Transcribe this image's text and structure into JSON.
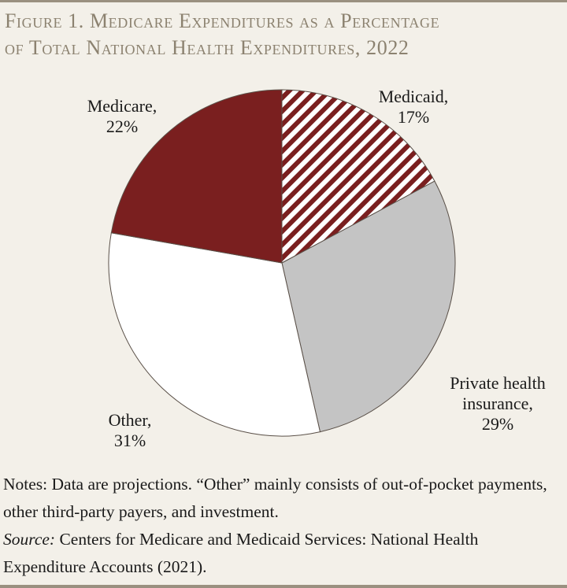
{
  "figure": {
    "title_line1": "Figure 1. Medicare Expenditures as a Percentage",
    "title_line2": "of Total National Health Expenditures, 2022"
  },
  "chart_data": {
    "type": "pie",
    "start_angle_deg": 0,
    "direction": "clockwise",
    "slices": [
      {
        "name": "Medicaid",
        "value": 17,
        "label_line1": "Medicaid,",
        "label_line2": "17%",
        "fill": "hatch",
        "color": "#7a1f1f"
      },
      {
        "name": "Private health insurance",
        "value": 29,
        "label_line1": "Private health",
        "label_line2": "insurance,",
        "label_line3": "29%",
        "fill": "solid",
        "color": "#c4c4c4"
      },
      {
        "name": "Other",
        "value": 31,
        "label_line1": "Other,",
        "label_line2": "31%",
        "fill": "solid",
        "color": "#ffffff"
      },
      {
        "name": "Medicare",
        "value": 22,
        "label_line1": "Medicare,",
        "label_line2": "22%",
        "fill": "solid",
        "color": "#7a1f1f"
      }
    ],
    "legend": "none"
  },
  "notes": {
    "line1": "Notes: Data are projections.  “Other” mainly consists of out-of-pocket payments, other third-party payers, and investment.",
    "source_label": "Source:",
    "source_text": " Centers for Medicare and Medicaid Services: National Health Expenditure Accounts (2021)."
  }
}
